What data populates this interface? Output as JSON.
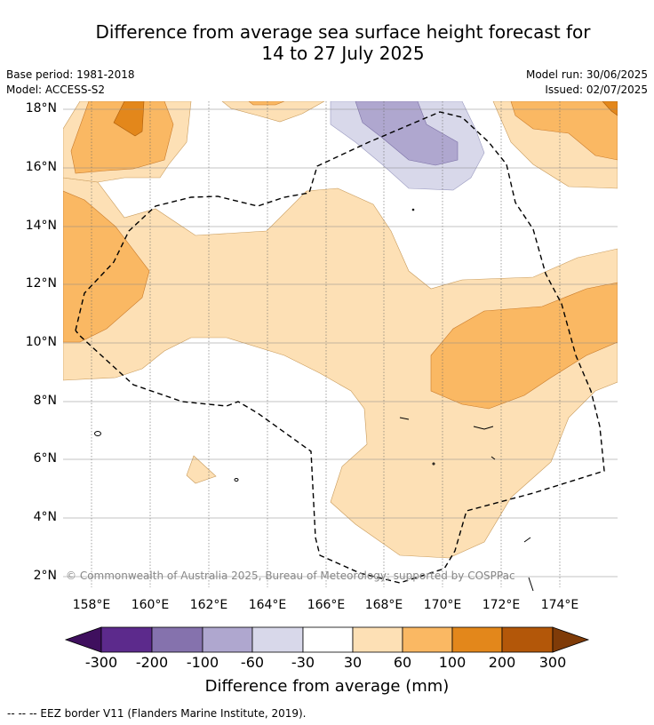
{
  "title_line1": "Difference from average sea surface height forecast for",
  "title_line2": "14 to 27 July 2025",
  "base_period": "Base period: 1981-2018",
  "model": "Model: ACCESS-S2",
  "model_run": "Model run: 30/06/2025",
  "issued": "Issued: 02/07/2025",
  "lat_labels": [
    "18°N",
    "16°N",
    "14°N",
    "12°N",
    "10°N",
    "8°N",
    "6°N",
    "4°N",
    "2°N"
  ],
  "lon_labels": [
    "158°E",
    "160°E",
    "162°E",
    "164°E",
    "166°E",
    "168°E",
    "170°E",
    "172°E",
    "174°E"
  ],
  "copyright": "© Commonwealth of Australia 2025, Bureau of Meteorology; supported by COSPPac",
  "colorbar": {
    "ticks": [
      "-300",
      "-200",
      "-100",
      "-60",
      "-30",
      "30",
      "60",
      "100",
      "200",
      "300"
    ],
    "title": "Difference from average (mm)",
    "colors": [
      "#3f0f5e",
      "#5c2a8c",
      "#8572ad",
      "#afa7cf",
      "#d8d8ea",
      "#ffffff",
      "#fde0b5",
      "#fab863",
      "#e3871b",
      "#b35709",
      "#7f3b08"
    ]
  },
  "footer": "--  --  -- EEZ border V11 (Flanders Marine Institute, 2019)."
}
